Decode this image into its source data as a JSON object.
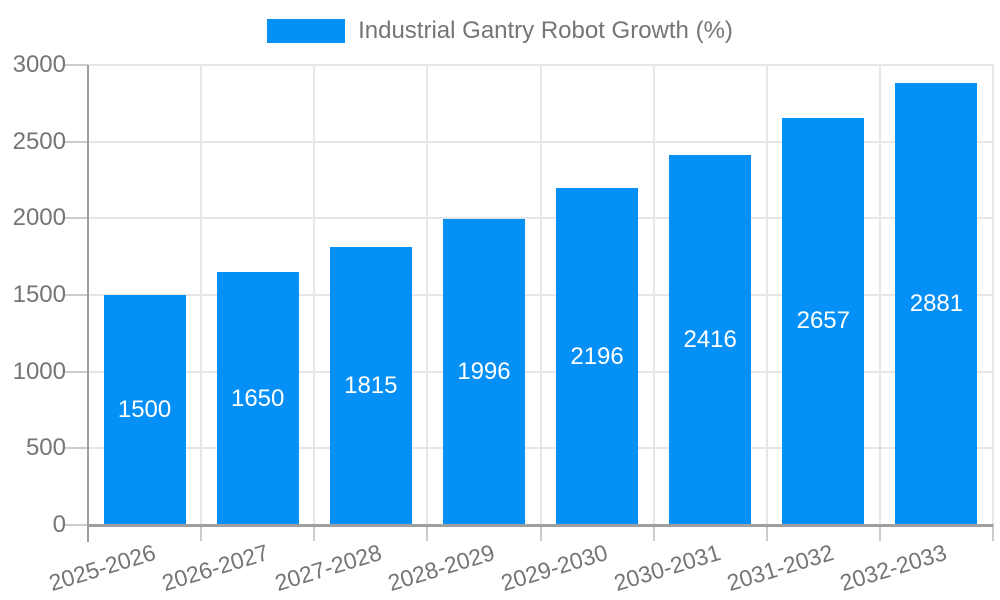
{
  "colors": {
    "bar": "#0590F8",
    "grid": "#E6E6E6",
    "tick": "#CCCCCC",
    "axis": "#9E9E9E",
    "text": "#757575",
    "bar_label": "#FFFFFF",
    "background": "#FFFFFF"
  },
  "legend": {
    "label": "Industrial Gantry Robot Growth (%)"
  },
  "chart_data": {
    "type": "bar",
    "title": "",
    "xlabel": "",
    "ylabel": "",
    "series_name": "Industrial Gantry Robot Growth (%)",
    "categories": [
      "2025-2026",
      "2026-2027",
      "2027-2028",
      "2028-2029",
      "2029-2030",
      "2030-2031",
      "2031-2032",
      "2032-2033"
    ],
    "values": [
      1500,
      1650,
      1815,
      1996,
      2196,
      2416,
      2657,
      2881
    ],
    "bar_value_labels": [
      "1500",
      "1650",
      "1815",
      "1996",
      "2196",
      "2416",
      "2657",
      "2881"
    ],
    "ylim": [
      0,
      3000
    ],
    "ytick_step": 500,
    "ytick_labels": [
      "0",
      "500",
      "1000",
      "1500",
      "2000",
      "2500",
      "3000"
    ],
    "grid": true,
    "legend_position": "top-center",
    "bar_label_position": "inside-center",
    "xtick_rotation_deg": -17
  }
}
